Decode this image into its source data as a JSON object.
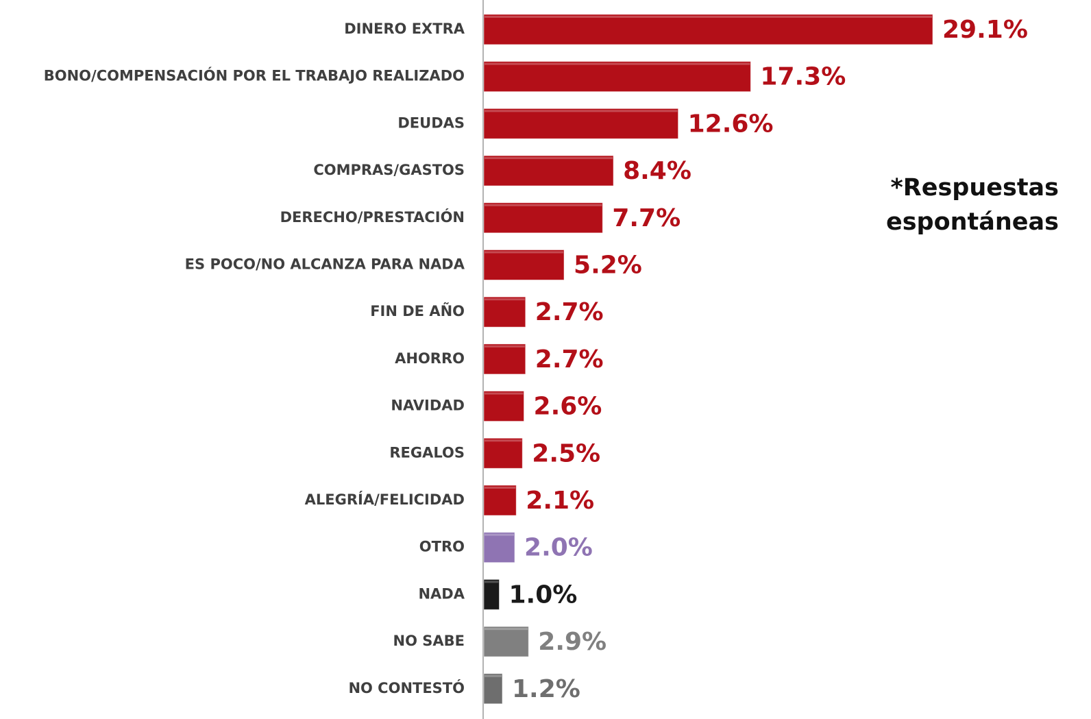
{
  "chart_data": {
    "type": "bar",
    "orientation": "horizontal",
    "categories": [
      "DINERO EXTRA",
      "BONO/COMPENSACIÓN POR EL TRABAJO REALIZADO",
      "DEUDAS",
      "COMPRAS/GASTOS",
      "DERECHO/PRESTACIÓN",
      "ES POCO/NO ALCANZA PARA NADA",
      "FIN DE AÑO",
      "AHORRO",
      "NAVIDAD",
      "REGALOS",
      "ALEGRÍA/FELICIDAD",
      "OTRO",
      "NADA",
      "NO SABE",
      "NO CONTESTÓ"
    ],
    "values": [
      29.1,
      17.3,
      12.6,
      8.4,
      7.7,
      5.2,
      2.7,
      2.7,
      2.6,
      2.5,
      2.1,
      2.0,
      1.0,
      2.9,
      1.2
    ],
    "value_labels": [
      "29.1%",
      "17.3%",
      "12.6%",
      "8.4%",
      "7.7%",
      "5.2%",
      "2.7%",
      "2.7%",
      "2.6%",
      "2.5%",
      "2.1%",
      "2.0%",
      "1.0%",
      "2.9%",
      "1.2%"
    ],
    "colors": [
      "#b30f18",
      "#b30f18",
      "#b30f18",
      "#b30f18",
      "#b30f18",
      "#b30f18",
      "#b30f18",
      "#b30f18",
      "#b30f18",
      "#b30f18",
      "#b30f18",
      "#8f74b3",
      "#1a1a1a",
      "#808080",
      "#6e6e6e"
    ],
    "annotation": [
      "*Respuestas",
      "espontáneas"
    ]
  }
}
